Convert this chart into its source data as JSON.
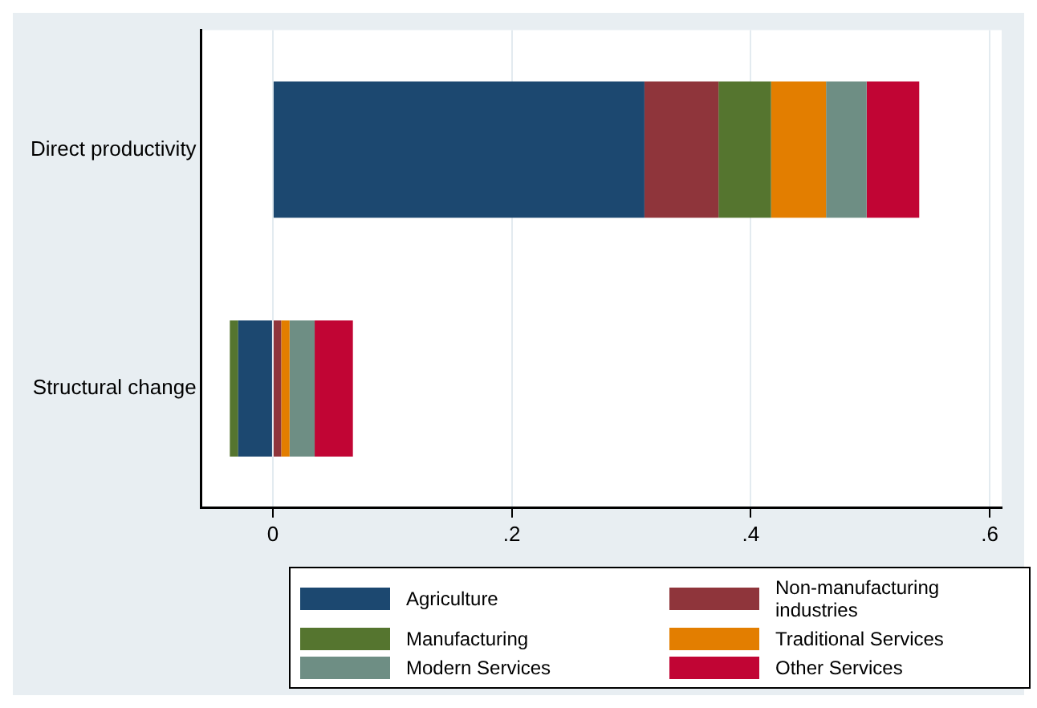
{
  "chart_data": {
    "type": "bar",
    "orientation": "horizontal",
    "stacked": true,
    "categories": [
      "Direct productivity",
      "Structural change"
    ],
    "series": [
      {
        "name": "Agriculture",
        "color": "#1c4870",
        "values": [
          0.311,
          -0.029
        ]
      },
      {
        "name": "Non-manufacturing industries",
        "color": "#8f353b",
        "values": [
          0.062,
          0.007
        ]
      },
      {
        "name": "Manufacturing",
        "color": "#55752f",
        "values": [
          0.044,
          -0.007
        ]
      },
      {
        "name": "Traditional Services",
        "color": "#e37e00",
        "values": [
          0.046,
          0.007
        ]
      },
      {
        "name": "Modern Services",
        "color": "#6e8e84",
        "values": [
          0.034,
          0.021
        ]
      },
      {
        "name": "Other Services",
        "color": "#c10534",
        "values": [
          0.044,
          0.032
        ]
      }
    ],
    "xlim": [
      -0.06,
      0.61
    ],
    "xticks": [
      {
        "value": 0,
        "label": "0"
      },
      {
        "value": 0.2,
        "label": ".2"
      },
      {
        "value": 0.4,
        "label": ".4"
      },
      {
        "value": 0.6,
        "label": ".6"
      }
    ],
    "grid": "x",
    "legend": "bottom"
  }
}
